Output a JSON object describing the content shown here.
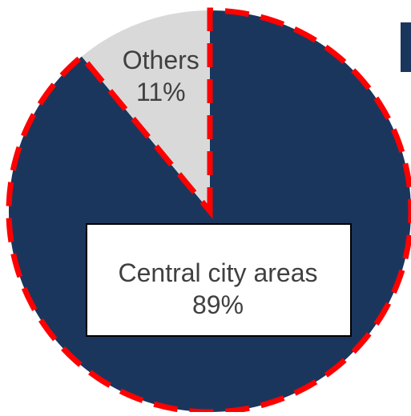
{
  "chart_data": {
    "type": "pie",
    "title": "",
    "slices": [
      {
        "label": "Central city areas",
        "value": 89,
        "value_label": "89%",
        "color": "#1b365d"
      },
      {
        "label": "Others",
        "value": 11,
        "value_label": "11%",
        "color": "#d9d9d9"
      }
    ],
    "start_angle_deg": 0,
    "direction": "clockwise",
    "highlight": {
      "style": "dashed",
      "color": "#ff0000",
      "applies_to": "Central city areas"
    }
  },
  "colors": {
    "legend_marker": "#1b365d",
    "label_box_fill": "#ffffff",
    "label_box_border": "#000000",
    "text": "#404040"
  }
}
